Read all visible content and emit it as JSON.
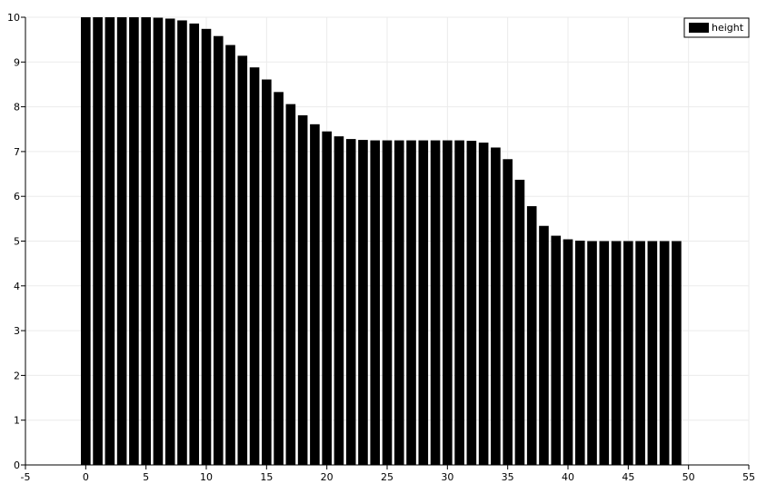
{
  "chart_data": {
    "type": "bar",
    "title": "",
    "xlabel": "",
    "ylabel": "",
    "xlim": [
      -5,
      55
    ],
    "ylim": [
      0,
      10
    ],
    "x_ticks": [
      -5,
      0,
      5,
      10,
      15,
      20,
      25,
      30,
      35,
      40,
      45,
      50,
      55
    ],
    "y_ticks": [
      0,
      1,
      2,
      3,
      4,
      5,
      6,
      7,
      8,
      9,
      10
    ],
    "grid": true,
    "legend_position": "top-right",
    "series": [
      {
        "name": "height",
        "color": "#000000",
        "x": [
          0,
          1,
          2,
          3,
          4,
          5,
          6,
          7,
          8,
          9,
          10,
          11,
          12,
          13,
          14,
          15,
          16,
          17,
          18,
          19,
          20,
          21,
          22,
          23,
          24,
          25,
          26,
          27,
          28,
          29,
          30,
          31,
          32,
          33,
          34,
          35,
          36,
          37,
          38,
          39,
          40,
          41,
          42,
          43,
          44,
          45,
          46,
          47,
          48,
          49
        ],
        "values": [
          10,
          10,
          10,
          10,
          10,
          10,
          9.99,
          9.97,
          9.93,
          9.86,
          9.74,
          9.58,
          9.38,
          9.14,
          8.88,
          8.61,
          8.33,
          8.06,
          7.81,
          7.61,
          7.45,
          7.34,
          7.28,
          7.26,
          7.25,
          7.25,
          7.25,
          7.25,
          7.25,
          7.25,
          7.25,
          7.25,
          7.24,
          7.2,
          7.09,
          6.83,
          6.37,
          5.78,
          5.34,
          5.12,
          5.04,
          5.01,
          5.0,
          5.0,
          5.0,
          5.0,
          5.0,
          5.0,
          5.0,
          5.0
        ]
      }
    ]
  }
}
